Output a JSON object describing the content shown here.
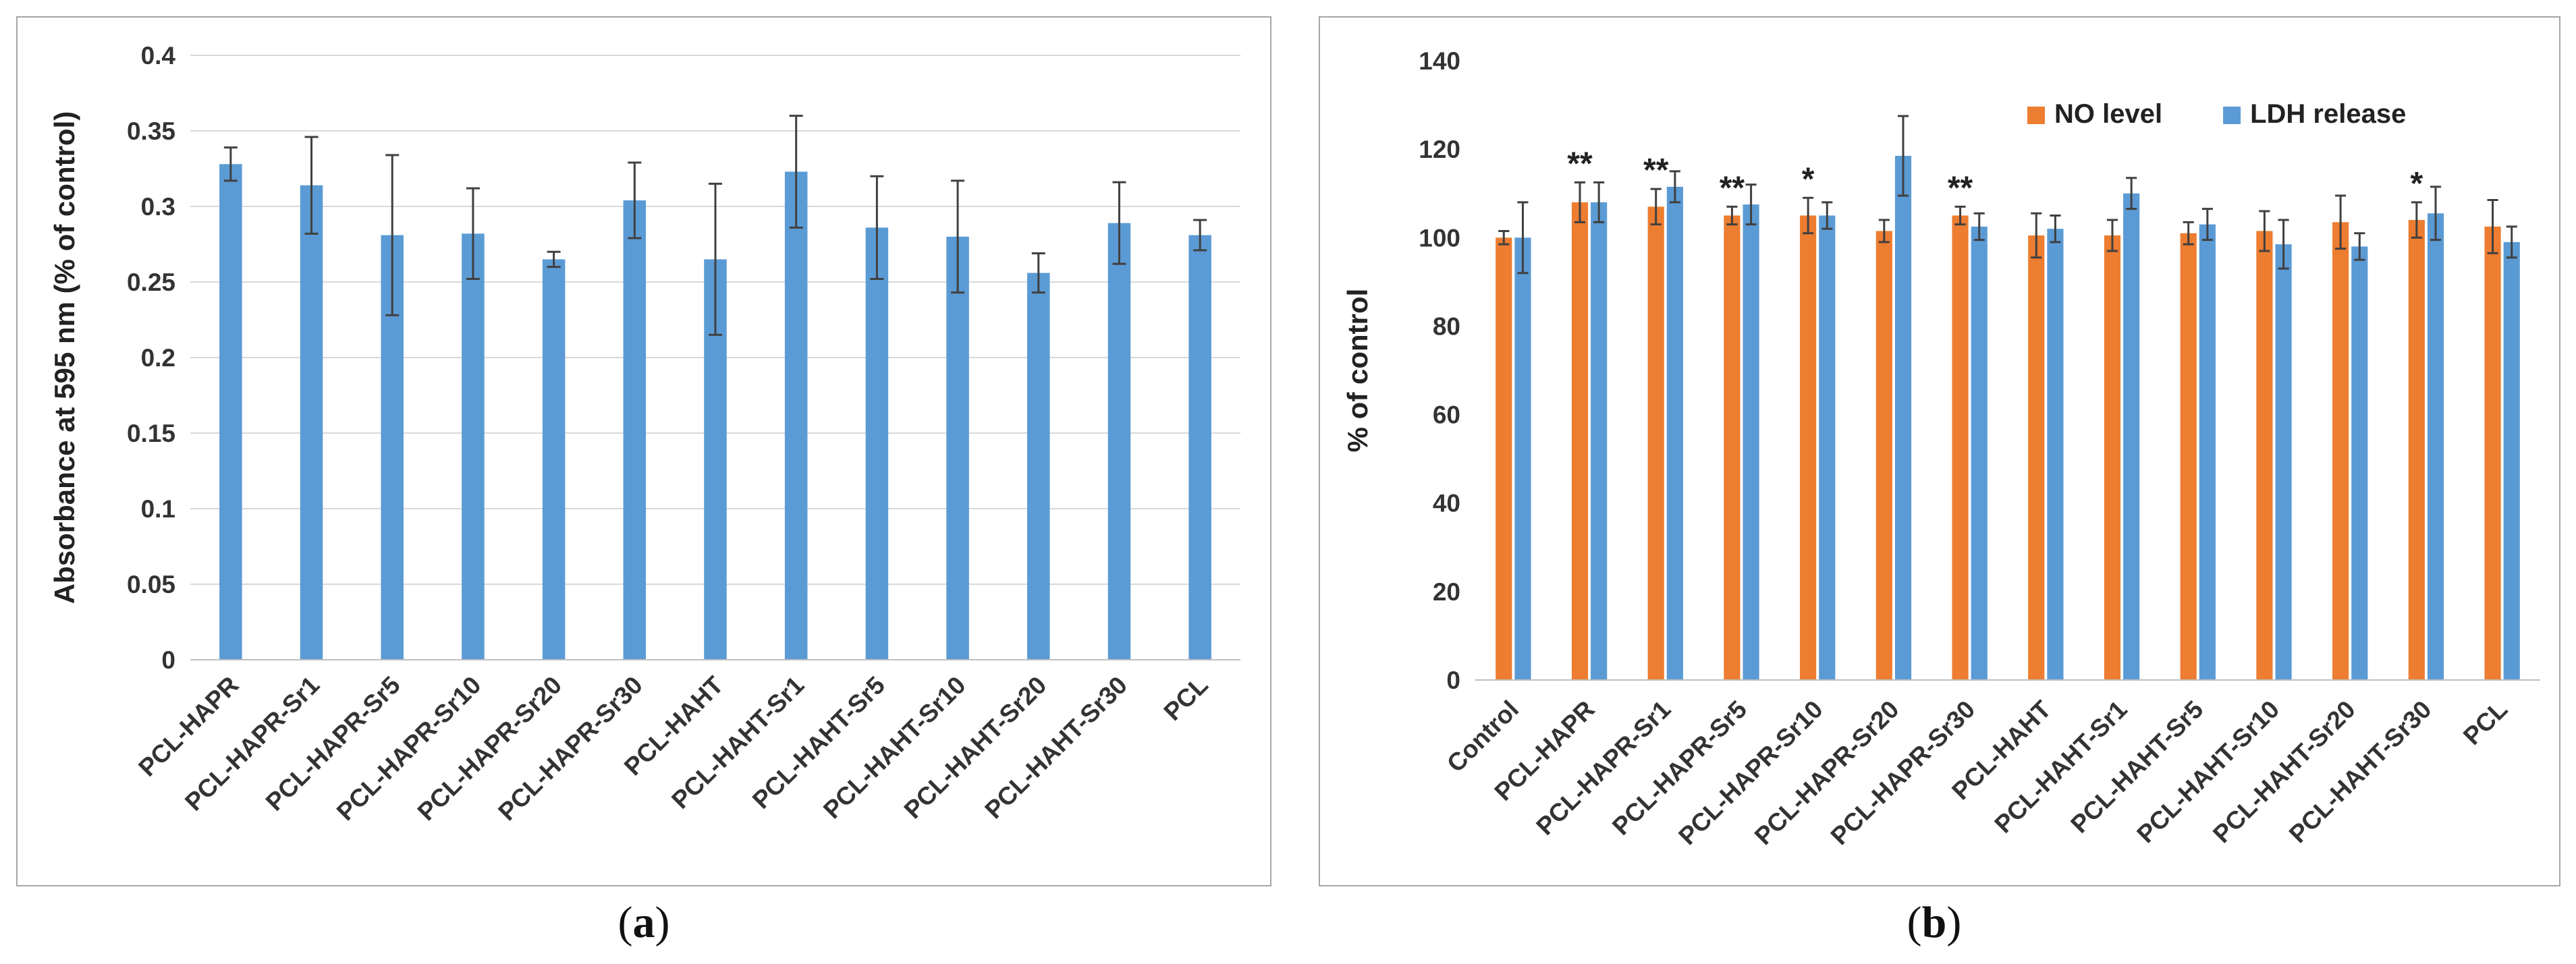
{
  "chart_data": [
    {
      "panel": "a",
      "type": "bar",
      "title": "",
      "ylabel": "Absorbance at 595 nm (% of control)",
      "xlabel": "",
      "ylim": [
        0,
        0.4
      ],
      "yticks": [
        0,
        0.05,
        0.1,
        0.15,
        0.2,
        0.25,
        0.3,
        0.35,
        0.4
      ],
      "ytick_labels": [
        "0",
        "0.05",
        "0.1",
        "0.15",
        "0.2",
        "0.25",
        "0.3",
        "0.35",
        "0.4"
      ],
      "grid": true,
      "categories": [
        "PCL-HAPR",
        "PCL-HAPR-Sr1",
        "PCL-HAPR-Sr5",
        "PCL-HAPR-Sr10",
        "PCL-HAPR-Sr20",
        "PCL-HAPR-Sr30",
        "PCL-HAHT",
        "PCL-HAHT-Sr1",
        "PCL-HAHT-Sr5",
        "PCL-HAHT-Sr10",
        "PCL-HAHT-Sr20",
        "PCL-HAHT-Sr30",
        "PCL"
      ],
      "series": [
        {
          "name": "Absorbance",
          "color": "#5B9BD5",
          "values": [
            0.328,
            0.314,
            0.281,
            0.282,
            0.265,
            0.304,
            0.265,
            0.323,
            0.286,
            0.28,
            0.256,
            0.289,
            0.281
          ],
          "errors": [
            0.011,
            0.032,
            0.053,
            0.03,
            0.005,
            0.025,
            0.05,
            0.037,
            0.034,
            0.037,
            0.013,
            0.027,
            0.01
          ]
        }
      ]
    },
    {
      "panel": "b",
      "type": "bar",
      "title": "",
      "ylabel": "% of control",
      "xlabel": "",
      "ylim": [
        0,
        140
      ],
      "yticks": [
        0,
        20,
        40,
        60,
        80,
        100,
        120,
        140
      ],
      "ytick_labels": [
        "0",
        "20",
        "40",
        "60",
        "80",
        "100",
        "120",
        "140"
      ],
      "grid": false,
      "legend_position": "top-right",
      "categories": [
        "Control",
        "PCL-HAPR",
        "PCL-HAPR-Sr1",
        "PCL-HAPR-Sr5",
        "PCL-HAPR-Sr10",
        "PCL-HAPR-Sr20",
        "PCL-HAPR-Sr30",
        "PCL-HAHT",
        "PCL-HAHT-Sr1",
        "PCL-HAHT-Sr5",
        "PCL-HAHT-Sr10",
        "PCL-HAHT-Sr20",
        "PCL-HAHT-Sr30",
        "PCL"
      ],
      "series": [
        {
          "name": "NO level",
          "color": "#ED7D31",
          "values": [
            100,
            108,
            107,
            105,
            105,
            101.5,
            105,
            100.5,
            100.5,
            101,
            101.5,
            103.5,
            104,
            102.5
          ],
          "errors": [
            1.5,
            4.5,
            4,
            2,
            4,
            2.5,
            2,
            5,
            3.5,
            2.5,
            4.5,
            6,
            4,
            6
          ]
        },
        {
          "name": "LDH release",
          "color": "#5B9BD5",
          "values": [
            100,
            108,
            111.5,
            107.5,
            105,
            118.5,
            102.5,
            102,
            110,
            103,
            98.5,
            98,
            105.5,
            99
          ],
          "errors": [
            8,
            4.5,
            3.5,
            4.5,
            3,
            9,
            3,
            3,
            3.5,
            3.5,
            5.5,
            3,
            6,
            3.5
          ]
        }
      ],
      "annotations": [
        "",
        "**",
        "**",
        "**",
        "*",
        "",
        "**",
        "",
        "",
        "",
        "",
        "",
        "*",
        ""
      ]
    }
  ],
  "captions": {
    "a": "a",
    "b": "b"
  }
}
